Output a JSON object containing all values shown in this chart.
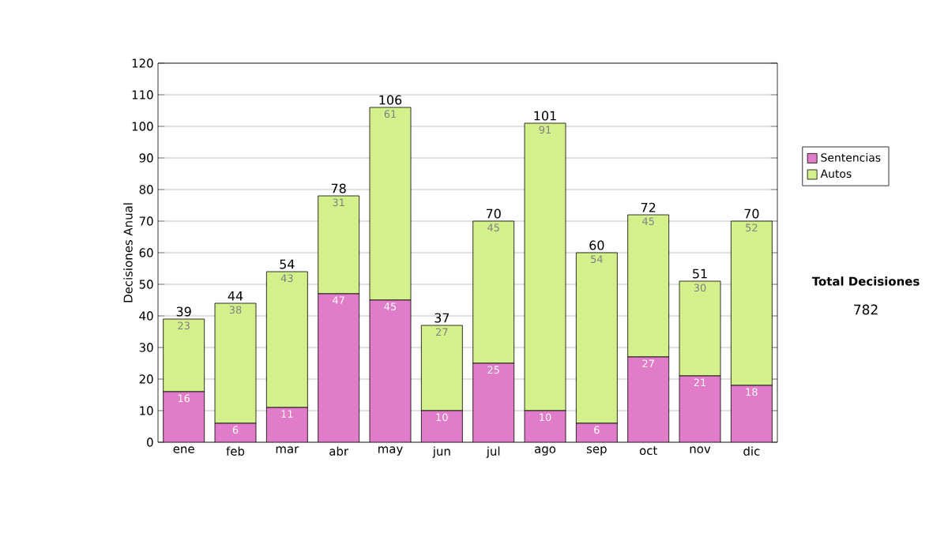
{
  "chart_data": {
    "type": "bar",
    "stacked": true,
    "ylabel": "Decisiones Anual",
    "categories": [
      "ene",
      "feb",
      "mar",
      "abr",
      "may",
      "jun",
      "jul",
      "ago",
      "sep",
      "oct",
      "nov",
      "dic"
    ],
    "series": [
      {
        "name": "Sentencias",
        "color": "#e07cc8",
        "values": [
          16,
          6,
          11,
          47,
          45,
          10,
          25,
          10,
          6,
          27,
          21,
          18
        ]
      },
      {
        "name": "Autos",
        "color": "#d4f08c",
        "values": [
          23,
          38,
          43,
          31,
          61,
          27,
          45,
          91,
          54,
          45,
          30,
          52
        ]
      }
    ],
    "ylim": [
      0,
      120
    ],
    "yticks": [
      0,
      10,
      20,
      30,
      40,
      50,
      60,
      70,
      80,
      90,
      100,
      110,
      120
    ],
    "grid": "y",
    "legend": "right",
    "data_labels": true,
    "totals": [
      "39",
      "44",
      "54",
      "78",
      "106",
      "37",
      "70",
      "101",
      "60",
      "72",
      "51",
      "70"
    ],
    "annotations": [
      "Total Decisiones",
      "782"
    ]
  }
}
